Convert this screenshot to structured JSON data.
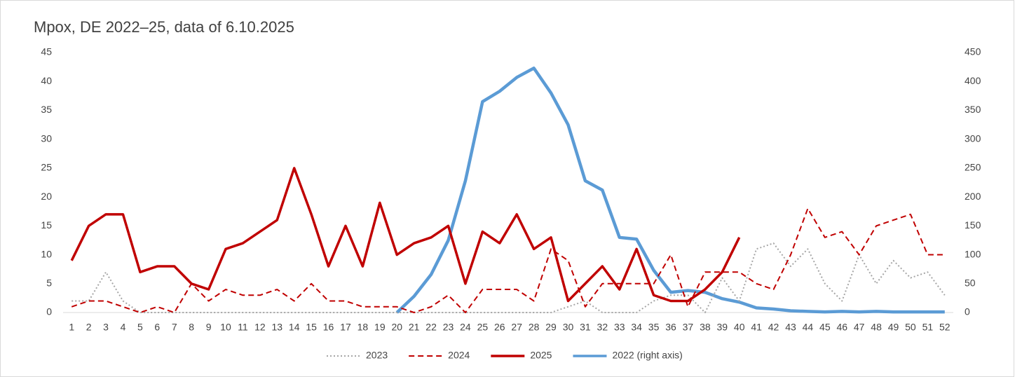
{
  "chart_data": {
    "type": "line",
    "title": "Mpox, DE 2022–25, data of 6.10.2025",
    "categories": [
      "1",
      "2",
      "3",
      "4",
      "5",
      "6",
      "7",
      "8",
      "9",
      "10",
      "11",
      "12",
      "13",
      "14",
      "15",
      "16",
      "17",
      "18",
      "19",
      "20",
      "21",
      "22",
      "23",
      "24",
      "25",
      "26",
      "27",
      "28",
      "29",
      "30",
      "31",
      "32",
      "33",
      "34",
      "35",
      "36",
      "37",
      "38",
      "39",
      "40",
      "41",
      "42",
      "43",
      "44",
      "45",
      "46",
      "47",
      "48",
      "49",
      "50",
      "51",
      "52"
    ],
    "ylim": [
      0,
      45
    ],
    "yticks": [
      0,
      5,
      10,
      15,
      20,
      25,
      30,
      35,
      40,
      45
    ],
    "y2lim": [
      0,
      450
    ],
    "y2ticks": [
      0,
      50,
      100,
      150,
      200,
      250,
      300,
      350,
      400,
      450
    ],
    "grid": false,
    "legend": "bottom",
    "series": [
      {
        "name": "2023",
        "color": "#a6a6a6",
        "style": "dotted",
        "width": 2,
        "values": [
          2,
          2,
          7,
          2,
          0,
          0,
          0,
          0,
          0,
          0,
          0,
          0,
          0,
          0,
          0,
          0,
          0,
          0,
          0,
          0,
          0,
          0,
          0,
          0,
          0,
          0,
          0,
          0,
          0,
          1,
          2,
          0,
          0,
          0,
          2,
          3,
          3,
          0,
          6,
          2,
          11,
          12,
          8,
          11,
          5,
          2,
          10,
          5,
          9,
          6,
          7,
          3
        ]
      },
      {
        "name": "2024",
        "color": "#c00000",
        "style": "dashed",
        "width": 2,
        "values": [
          1,
          2,
          2,
          1,
          0,
          1,
          0,
          5,
          2,
          4,
          3,
          3,
          4,
          2,
          5,
          2,
          2,
          1,
          1,
          1,
          0,
          1,
          3,
          0,
          4,
          4,
          4,
          2,
          11,
          9,
          1,
          5,
          5,
          5,
          5,
          10,
          1,
          7,
          7,
          7,
          5,
          4,
          10,
          18,
          13,
          14,
          10,
          15,
          16,
          17,
          10,
          10
        ]
      },
      {
        "name": "2025",
        "color": "#c00000",
        "style": "solid",
        "width": 3.5,
        "values": [
          9,
          15,
          17,
          17,
          7,
          8,
          8,
          5,
          4,
          11,
          12,
          14,
          16,
          25,
          17,
          8,
          15,
          8,
          19,
          10,
          12,
          13,
          15,
          5,
          14,
          12,
          17,
          11,
          13,
          2,
          5,
          8,
          4,
          11,
          3,
          2,
          2,
          4,
          7,
          13,
          null,
          null,
          null,
          null,
          null,
          null,
          null,
          null,
          null,
          null,
          null,
          null
        ]
      },
      {
        "name": "2022 (right axis)",
        "color": "#5b9bd5",
        "style": "solid",
        "width": 4.5,
        "axis": "y2",
        "values": [
          null,
          null,
          null,
          null,
          null,
          null,
          null,
          null,
          null,
          null,
          null,
          null,
          null,
          null,
          null,
          null,
          null,
          null,
          null,
          0,
          28,
          66,
          125,
          228,
          365,
          383,
          407,
          423,
          380,
          325,
          228,
          212,
          130,
          127,
          73,
          35,
          38,
          35,
          24,
          18,
          8,
          6,
          3,
          2,
          1,
          2,
          1,
          2,
          1,
          1,
          1,
          1
        ]
      }
    ]
  }
}
